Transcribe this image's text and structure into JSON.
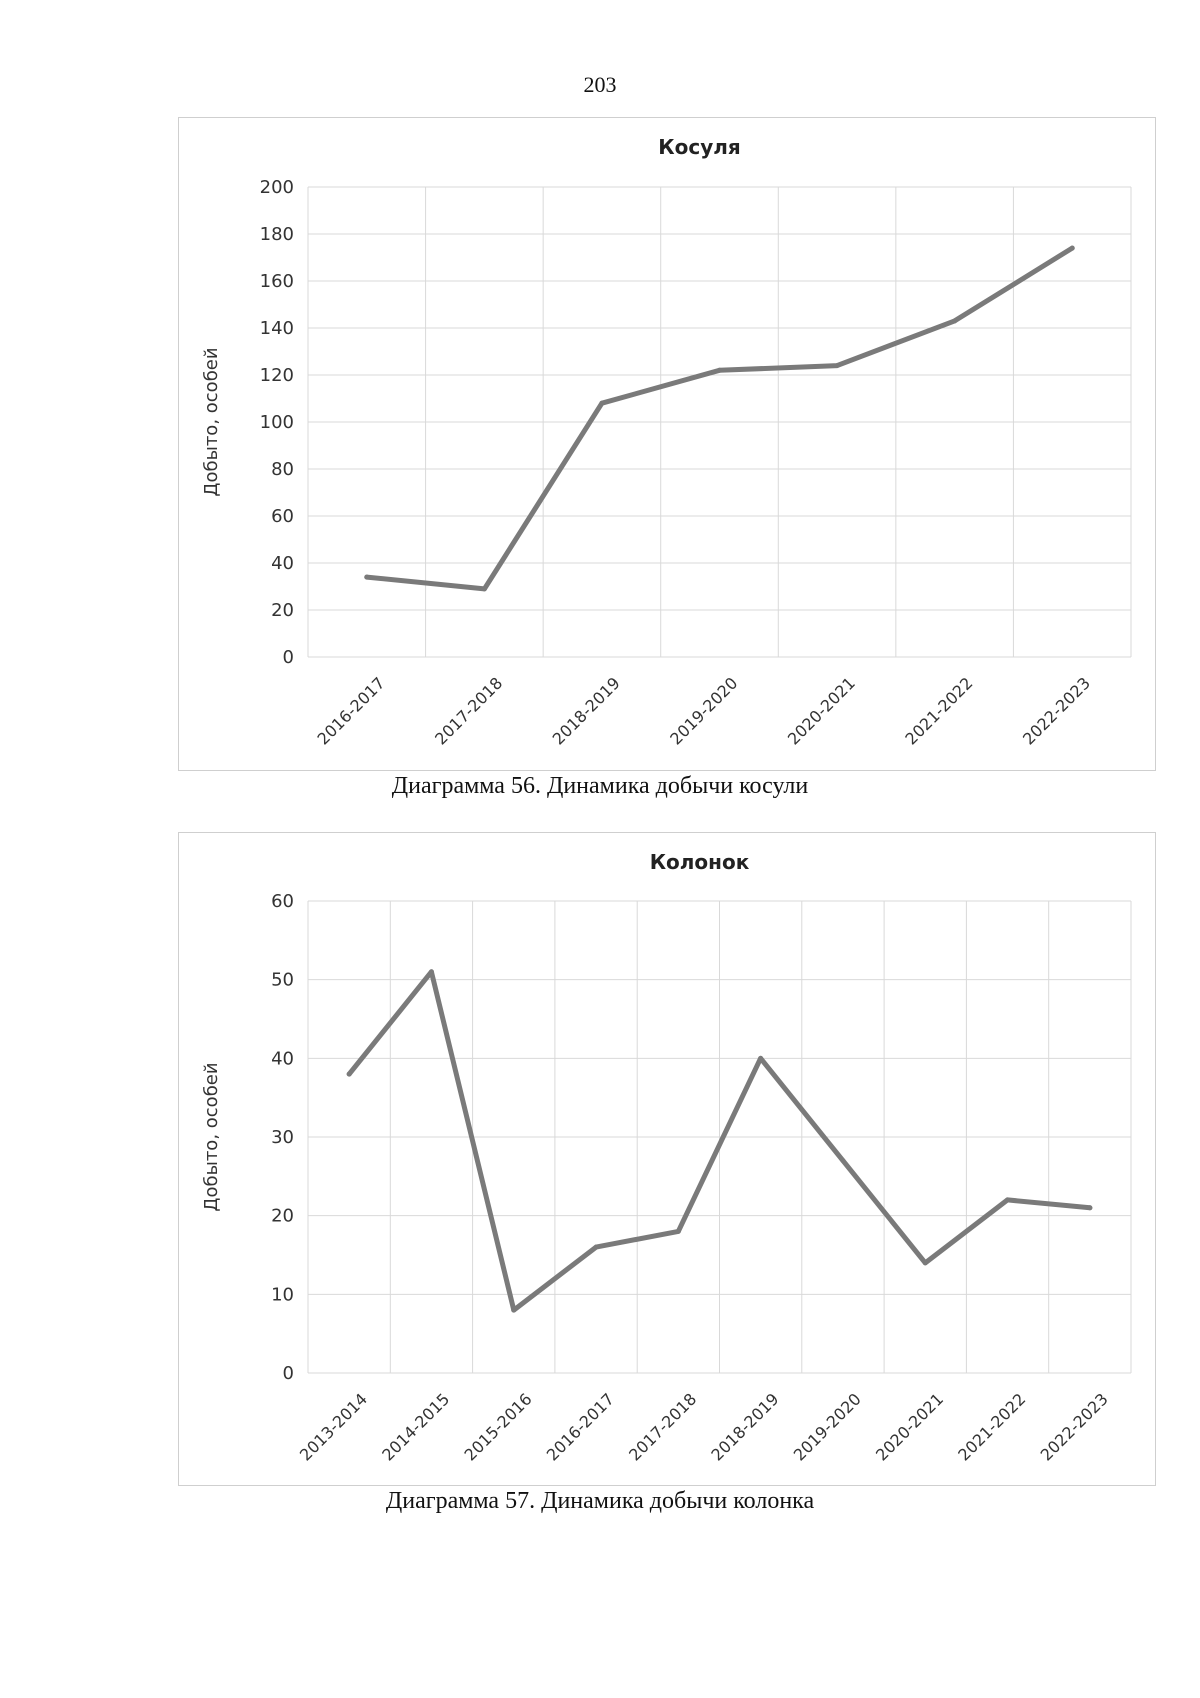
{
  "page": {
    "number": "203"
  },
  "captions": {
    "chart1": "Диаграмма 56. Динамика добычи косули",
    "chart2": "Диаграмма 57. Динамика добычи колонка"
  },
  "colors": {
    "line": "#7a7a7a",
    "grid": "#d9d9d9",
    "frame": "#cfcfcf",
    "text": "#333333"
  },
  "chart_data": [
    {
      "type": "line",
      "title": "Косуля",
      "xlabel": "",
      "ylabel": "Добыто, особей",
      "categories": [
        "2016-2017",
        "2017-2018",
        "2018-2019",
        "2019-2020",
        "2020-2021",
        "2021-2022",
        "2022-2023"
      ],
      "values": [
        34,
        29,
        108,
        122,
        124,
        143,
        174
      ],
      "ylim": [
        0,
        200
      ],
      "yticks": [
        0,
        20,
        40,
        60,
        80,
        100,
        120,
        140,
        160,
        180,
        200
      ],
      "grid": true,
      "legend": "none"
    },
    {
      "type": "line",
      "title": "Колонок",
      "xlabel": "",
      "ylabel": "Добыто, особей",
      "categories": [
        "2013-2014",
        "2014-2015",
        "2015-2016",
        "2016-2017",
        "2017-2018",
        "2018-2019",
        "2019-2020",
        "2020-2021",
        "2021-2022",
        "2022-2023"
      ],
      "values": [
        38,
        51,
        8,
        16,
        18,
        40,
        27,
        14,
        22,
        21
      ],
      "ylim": [
        0,
        60
      ],
      "yticks": [
        0,
        10,
        20,
        30,
        40,
        50,
        60
      ],
      "grid": true,
      "legend": "none"
    }
  ]
}
